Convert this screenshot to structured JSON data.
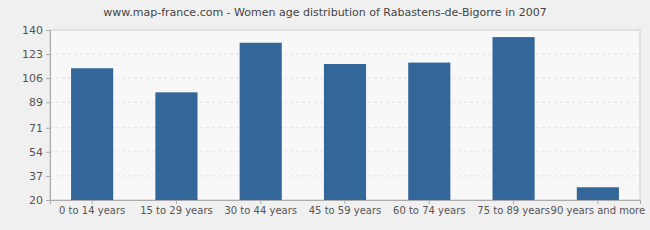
{
  "chart_data": {
    "type": "bar",
    "title": "www.map-france.com - Women age distribution of Rabastens-de-Bigorre in 2007",
    "categories": [
      "0 to 14 years",
      "15 to 29 years",
      "30 to 44 years",
      "45 to 59 years",
      "60 to 74 years",
      "75 to 89 years",
      "90 years and more"
    ],
    "values": [
      113,
      96,
      131,
      116,
      117,
      135,
      29
    ],
    "color": "#336699",
    "ylim": [
      20,
      140
    ],
    "yticks": [
      20,
      37,
      54,
      71,
      89,
      106,
      123,
      140
    ],
    "grid": true
  }
}
